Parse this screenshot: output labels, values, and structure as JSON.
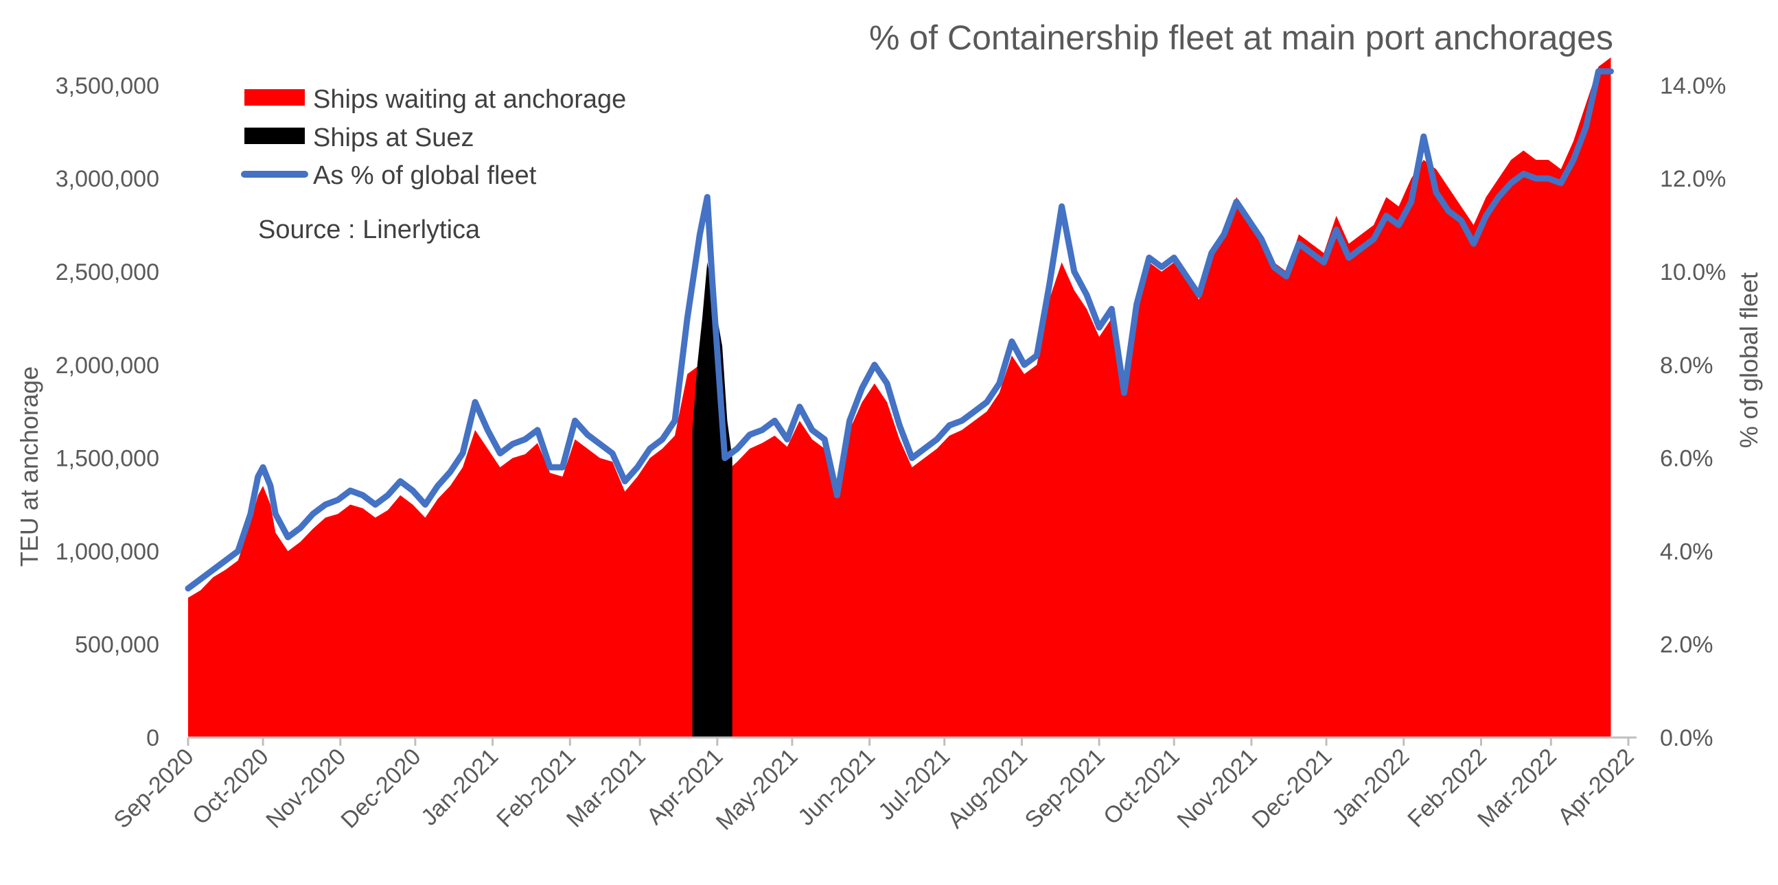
{
  "chart_data": {
    "type": "area",
    "title": "% of Containership fleet at main port anchorages",
    "source_note": "Source : Linerlytica",
    "ylabel": "TEU at anchorage",
    "y2label": "% of global fleet",
    "ylim": [
      0,
      3700000
    ],
    "y2lim": [
      0,
      0.148
    ],
    "yticks": [
      "0",
      "500,000",
      "1,000,000",
      "1,500,000",
      "2,000,000",
      "2,500,000",
      "3,000,000",
      "3,500,000"
    ],
    "y2ticks": [
      "0.0%",
      "2.0%",
      "4.0%",
      "6.0%",
      "8.0%",
      "10.0%",
      "12.0%",
      "14.0%"
    ],
    "categories": [
      "Sep-2020",
      "Oct-2020",
      "Nov-2020",
      "Dec-2020",
      "Jan-2021",
      "Feb-2021",
      "Mar-2021",
      "Apr-2021",
      "May-2021",
      "Jun-2021",
      "Jul-2021",
      "Aug-2021",
      "Sep-2021",
      "Oct-2021",
      "Nov-2021",
      "Dec-2021",
      "Jan-2022",
      "Feb-2022",
      "Mar-2022",
      "Apr-2022"
    ],
    "x_note": "x values are day offsets from 2020-09-01",
    "legend_position": "top-left",
    "series": [
      {
        "name": "Ships waiting at anchorage",
        "kind": "area",
        "axis": "left",
        "color": "#ff0000",
        "x": [
          0,
          5,
          10,
          15,
          20,
          25,
          28,
          30,
          33,
          35,
          40,
          45,
          50,
          55,
          60,
          65,
          70,
          75,
          80,
          85,
          90,
          95,
          100,
          105,
          110,
          115,
          120,
          125,
          130,
          135,
          140,
          145,
          150,
          155,
          160,
          165,
          170,
          175,
          180,
          185,
          190,
          195,
          200,
          205,
          208,
          210,
          215,
          220,
          225,
          230,
          235,
          240,
          245,
          250,
          255,
          260,
          265,
          270,
          275,
          280,
          285,
          290,
          295,
          300,
          305,
          310,
          315,
          320,
          325,
          330,
          335,
          340,
          345,
          350,
          355,
          360,
          365,
          370,
          375,
          380,
          385,
          390,
          395,
          400,
          405,
          410,
          415,
          420,
          425,
          430,
          435,
          440,
          445,
          450,
          455,
          460,
          465,
          470,
          475,
          480,
          485,
          490,
          495,
          500,
          505,
          510,
          515,
          520,
          525,
          530,
          535,
          540,
          545,
          550,
          555,
          560,
          565,
          570
        ],
        "values": [
          750000,
          790000,
          860000,
          900000,
          950000,
          1150000,
          1300000,
          1350000,
          1250000,
          1100000,
          1000000,
          1050000,
          1120000,
          1180000,
          1200000,
          1250000,
          1230000,
          1180000,
          1220000,
          1300000,
          1250000,
          1180000,
          1280000,
          1350000,
          1450000,
          1650000,
          1550000,
          1450000,
          1500000,
          1520000,
          1580000,
          1420000,
          1400000,
          1600000,
          1550000,
          1500000,
          1480000,
          1320000,
          1400000,
          1500000,
          1550000,
          1620000,
          1950000,
          2000000,
          1850000,
          1650000,
          1420000,
          1480000,
          1550000,
          1580000,
          1620000,
          1560000,
          1700000,
          1600000,
          1550000,
          1350000,
          1650000,
          1800000,
          1900000,
          1800000,
          1600000,
          1450000,
          1500000,
          1550000,
          1620000,
          1650000,
          1700000,
          1750000,
          1850000,
          2050000,
          1950000,
          2000000,
          2350000,
          2550000,
          2400000,
          2300000,
          2150000,
          2250000,
          1850000,
          2300000,
          2550000,
          2500000,
          2550000,
          2450000,
          2350000,
          2600000,
          2700000,
          2900000,
          2800000,
          2700000,
          2550000,
          2500000,
          2700000,
          2650000,
          2600000,
          2800000,
          2650000,
          2700000,
          2750000,
          2900000,
          2850000,
          3000000,
          3100000,
          3050000,
          2950000,
          2850000,
          2750000,
          2900000,
          3000000,
          3100000,
          3150000,
          3100000,
          3100000,
          3050000,
          3200000,
          3400000,
          3600000,
          3650000
        ]
      },
      {
        "name": "Ships at Suez",
        "kind": "area",
        "axis": "left",
        "color": "#000000",
        "x": [
          202,
          204,
          206,
          208,
          210,
          212,
          214,
          216,
          218
        ],
        "values": [
          1650000,
          2000000,
          2250000,
          2550000,
          2400000,
          2250000,
          2100000,
          1700000,
          1500000
        ]
      },
      {
        "name": "As % of global fleet",
        "kind": "line",
        "axis": "right",
        "color": "#4472c4",
        "x": [
          0,
          5,
          10,
          15,
          20,
          25,
          28,
          30,
          33,
          35,
          40,
          45,
          50,
          55,
          60,
          65,
          70,
          75,
          80,
          85,
          90,
          95,
          100,
          105,
          110,
          115,
          120,
          125,
          130,
          135,
          140,
          145,
          150,
          155,
          160,
          165,
          170,
          175,
          180,
          185,
          190,
          195,
          200,
          205,
          208,
          210,
          215,
          220,
          225,
          230,
          235,
          240,
          245,
          250,
          255,
          260,
          265,
          270,
          275,
          280,
          285,
          290,
          295,
          300,
          305,
          310,
          315,
          320,
          325,
          330,
          335,
          340,
          345,
          350,
          355,
          360,
          365,
          370,
          375,
          380,
          385,
          390,
          395,
          400,
          405,
          410,
          415,
          420,
          425,
          430,
          435,
          440,
          445,
          450,
          455,
          460,
          465,
          470,
          475,
          480,
          485,
          490,
          495,
          500,
          505,
          510,
          515,
          520,
          525,
          530,
          535,
          540,
          545,
          550,
          555,
          560,
          565,
          570
        ],
        "values": [
          0.032,
          0.034,
          0.036,
          0.038,
          0.04,
          0.048,
          0.056,
          0.058,
          0.054,
          0.048,
          0.043,
          0.045,
          0.048,
          0.05,
          0.051,
          0.053,
          0.052,
          0.05,
          0.052,
          0.055,
          0.053,
          0.05,
          0.054,
          0.057,
          0.061,
          0.072,
          0.066,
          0.061,
          0.063,
          0.064,
          0.066,
          0.058,
          0.058,
          0.068,
          0.065,
          0.063,
          0.061,
          0.055,
          0.058,
          0.062,
          0.064,
          0.068,
          0.09,
          0.108,
          0.116,
          0.098,
          0.06,
          0.062,
          0.065,
          0.066,
          0.068,
          0.064,
          0.071,
          0.066,
          0.064,
          0.052,
          0.068,
          0.075,
          0.08,
          0.076,
          0.067,
          0.06,
          0.062,
          0.064,
          0.067,
          0.068,
          0.07,
          0.072,
          0.076,
          0.085,
          0.08,
          0.082,
          0.097,
          0.114,
          0.1,
          0.095,
          0.088,
          0.092,
          0.074,
          0.093,
          0.103,
          0.101,
          0.103,
          0.099,
          0.095,
          0.104,
          0.108,
          0.115,
          0.111,
          0.107,
          0.101,
          0.099,
          0.106,
          0.104,
          0.102,
          0.109,
          0.103,
          0.105,
          0.107,
          0.112,
          0.11,
          0.115,
          0.129,
          0.117,
          0.113,
          0.111,
          0.106,
          0.112,
          0.116,
          0.119,
          0.121,
          0.12,
          0.12,
          0.119,
          0.124,
          0.131,
          0.143,
          0.143
        ]
      }
    ]
  }
}
